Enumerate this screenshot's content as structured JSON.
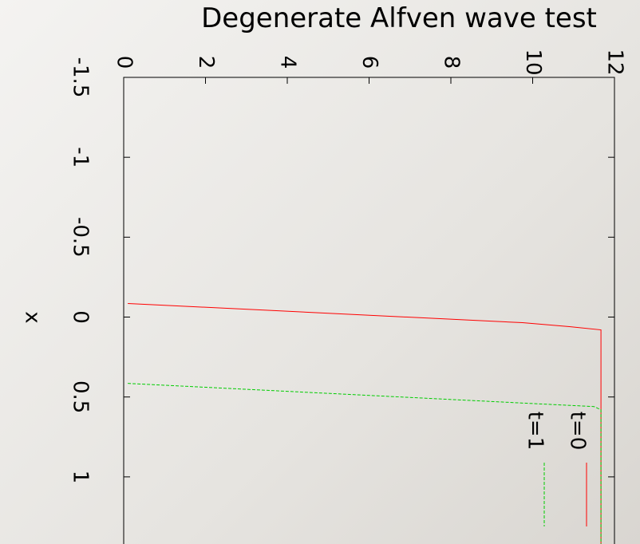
{
  "chart_data": {
    "type": "line",
    "title": "Degenerate Alfven wave test",
    "x_label": "x",
    "xlim": [
      -1.5,
      1.42
    ],
    "xticks": [
      -1.5,
      -1,
      -0.5,
      0,
      0.5,
      1
    ],
    "ylim": [
      0,
      12
    ],
    "yticks": [
      0,
      2,
      4,
      6,
      8,
      10,
      12
    ],
    "series": [
      {
        "name": "t=0",
        "color": "#ff0000",
        "x": [
          -0.085,
          0.035,
          0.06,
          0.08,
          1.42
        ],
        "values": [
          0.1,
          9.75,
          10.9,
          11.67,
          11.67
        ]
      },
      {
        "name": "t=1",
        "color": "#00cc00",
        "x": [
          0.415,
          0.55,
          0.56,
          0.58,
          1.42
        ],
        "values": [
          0.1,
          10.7,
          11.5,
          11.67,
          11.67
        ]
      }
    ]
  }
}
